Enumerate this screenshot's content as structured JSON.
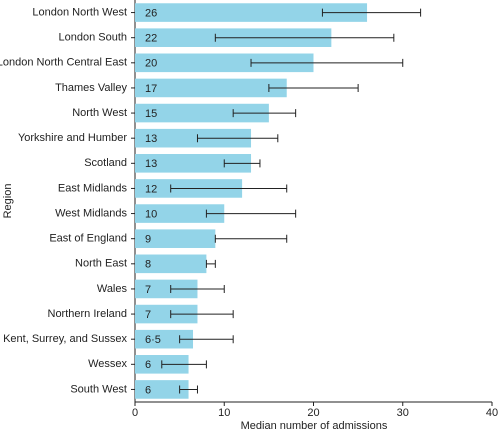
{
  "chart_data": {
    "type": "bar",
    "orientation": "horizontal",
    "x_label": "Median number of admissions",
    "y_label": "Region",
    "categories": [
      "London North West",
      "London South",
      "London North Central East",
      "Thames Valley",
      "North West",
      "Yorkshire and Humber",
      "Scotland",
      "East Midlands",
      "West Midlands",
      "East of England",
      "North East",
      "Wales",
      "Northern Ireland",
      "Kent, Surrey, and Sussex",
      "Wessex",
      "South West"
    ],
    "values": [
      26,
      22,
      20,
      17,
      15,
      13,
      13,
      12,
      10,
      9,
      8,
      7,
      7,
      6.5,
      6,
      6
    ],
    "value_labels": [
      "26",
      "22",
      "20",
      "17",
      "15",
      "13",
      "13",
      "12",
      "10",
      "9",
      "8",
      "7",
      "7",
      "6·5",
      "6",
      "6"
    ],
    "error_low": [
      21,
      9,
      13,
      15,
      11,
      7,
      10,
      4,
      8,
      9,
      8,
      4,
      4,
      5,
      3,
      5
    ],
    "error_high": [
      32,
      29,
      30,
      25,
      18,
      16,
      14,
      17,
      18,
      17,
      9,
      10,
      11,
      11,
      8,
      7
    ],
    "color": "#93d4e8",
    "xlim": [
      0,
      40
    ],
    "xticks": [
      0,
      10,
      20,
      30,
      40
    ],
    "grid": false
  }
}
